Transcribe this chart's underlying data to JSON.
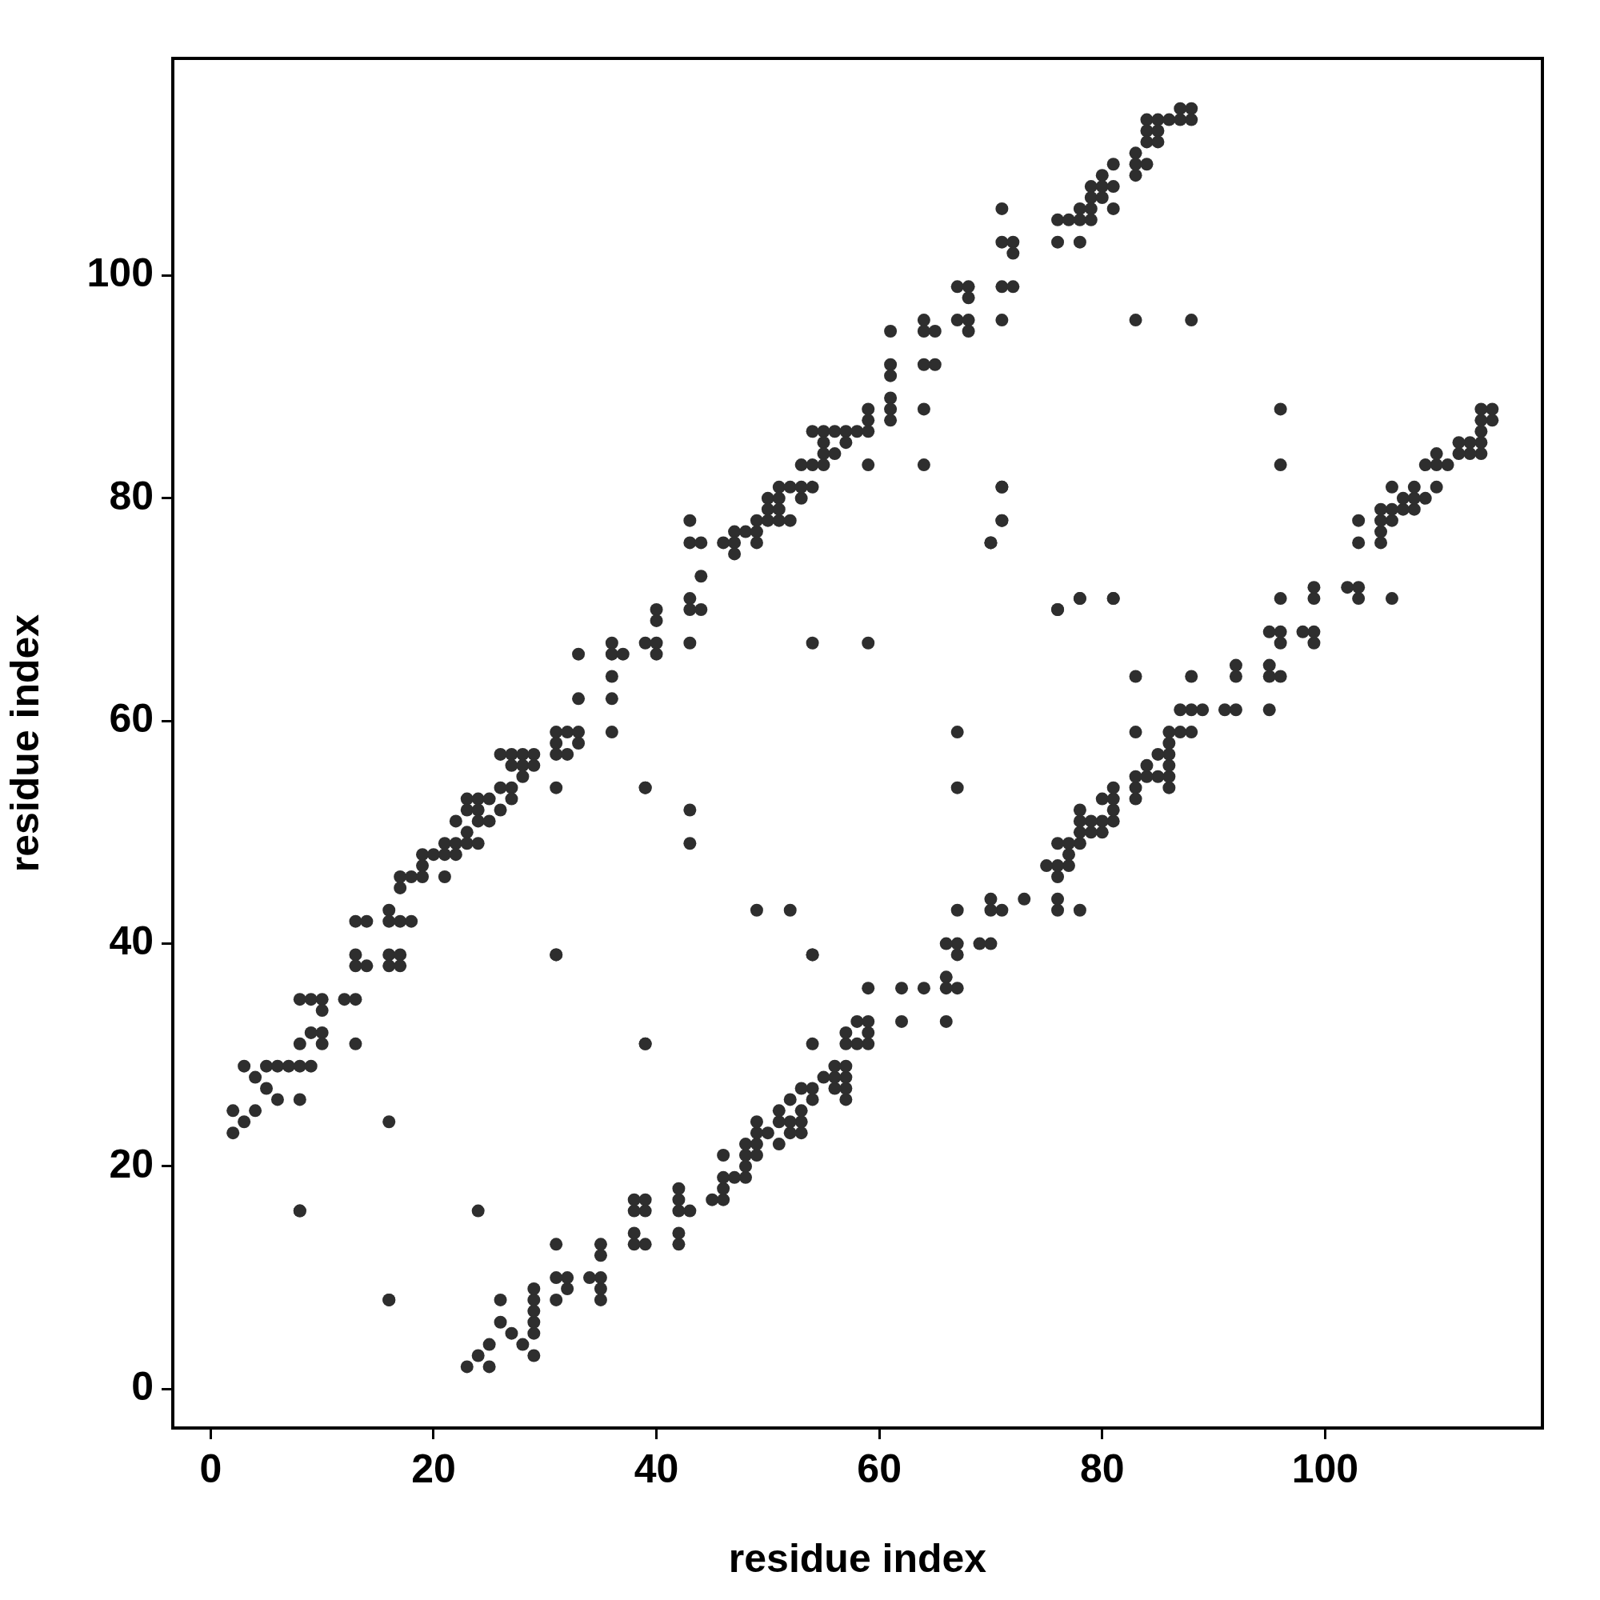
{
  "chart_data": {
    "type": "scatter",
    "xlabel": "residue index",
    "ylabel": "residue index",
    "xlim": [
      -3.4,
      119.5
    ],
    "ylim": [
      -3.5,
      119.5
    ],
    "xticks": [
      0,
      20,
      40,
      60,
      80,
      100
    ],
    "yticks": [
      0,
      20,
      40,
      60,
      80,
      100
    ],
    "grid": false,
    "legend": false,
    "marker": "circle",
    "series": [
      {
        "color": "#2e2e2e",
        "x": [
          2,
          2,
          3,
          3,
          4,
          4,
          5,
          5,
          6,
          6,
          7,
          8,
          8,
          8,
          8,
          8,
          9,
          9,
          9,
          10,
          10,
          10,
          10,
          12,
          13,
          13,
          13,
          13,
          13,
          14,
          14,
          16,
          16,
          16,
          16,
          16,
          16,
          17,
          17,
          17,
          17,
          17,
          18,
          18,
          19,
          19,
          19,
          20,
          21,
          21,
          21,
          22,
          22,
          22,
          23,
          23,
          23,
          23,
          24,
          24,
          24,
          24,
          25,
          25,
          26,
          26,
          26,
          27,
          27,
          27,
          27,
          28,
          28,
          28,
          29,
          29,
          31,
          31,
          31,
          31,
          31,
          32,
          32,
          33,
          33,
          33,
          33,
          36,
          36,
          36,
          36,
          36,
          37,
          39,
          39,
          39,
          40,
          40,
          40,
          40,
          43,
          43,
          43,
          43,
          43,
          43,
          43,
          44,
          44,
          44,
          46,
          47,
          47,
          47,
          48,
          49,
          49,
          49,
          50,
          50,
          50,
          51,
          51,
          51,
          51,
          52,
          52,
          53,
          53,
          53,
          54,
          54,
          54,
          54,
          54,
          55,
          55,
          55,
          55,
          56,
          56,
          57,
          57,
          58,
          59,
          59,
          59,
          59,
          59,
          61,
          61,
          61,
          61,
          61,
          61,
          64,
          64,
          64,
          64,
          64,
          65,
          65,
          67,
          67,
          68,
          68,
          68,
          68,
          70,
          71,
          71,
          71,
          71,
          71,
          71,
          72,
          72,
          72,
          76,
          76,
          76,
          77,
          78,
          78,
          78,
          78,
          79,
          79,
          79,
          79,
          80,
          80,
          80,
          81,
          81,
          81,
          81,
          83,
          83,
          83,
          83,
          84,
          84,
          84,
          84,
          85,
          85,
          85,
          86,
          87,
          87,
          88,
          88,
          88
        ],
        "values": [
          23,
          25,
          24,
          29,
          25,
          28,
          27,
          29,
          26,
          29,
          29,
          31,
          29,
          26,
          16,
          35,
          35,
          32,
          29,
          35,
          34,
          32,
          31,
          35,
          35,
          39,
          38,
          42,
          31,
          42,
          38,
          43,
          42,
          39,
          38,
          24,
          8,
          42,
          45,
          46,
          39,
          38,
          46,
          42,
          48,
          47,
          46,
          48,
          48,
          49,
          46,
          51,
          49,
          48,
          53,
          52,
          50,
          49,
          53,
          52,
          51,
          49,
          53,
          51,
          54,
          52,
          57,
          57,
          56,
          54,
          53,
          57,
          56,
          55,
          57,
          56,
          59,
          58,
          57,
          54,
          39,
          59,
          57,
          62,
          59,
          58,
          66,
          67,
          66,
          64,
          62,
          59,
          66,
          67,
          54,
          31,
          70,
          69,
          67,
          66,
          78,
          76,
          71,
          70,
          67,
          52,
          49,
          76,
          73,
          70,
          76,
          77,
          76,
          75,
          77,
          78,
          77,
          76,
          80,
          79,
          78,
          81,
          80,
          79,
          78,
          81,
          78,
          80,
          81,
          83,
          86,
          83,
          81,
          67,
          39,
          86,
          85,
          84,
          83,
          86,
          84,
          86,
          85,
          86,
          88,
          87,
          86,
          83,
          67,
          95,
          92,
          91,
          89,
          88,
          87,
          96,
          95,
          92,
          88,
          83,
          95,
          92,
          99,
          96,
          99,
          98,
          96,
          95,
          76,
          106,
          103,
          99,
          96,
          81,
          78,
          103,
          102,
          99,
          105,
          103,
          70,
          105,
          106,
          105,
          103,
          71,
          108,
          107,
          106,
          105,
          109,
          108,
          107,
          110,
          108,
          106,
          71,
          111,
          110,
          109,
          96,
          114,
          113,
          112,
          110,
          114,
          113,
          112,
          114,
          115,
          114,
          115,
          114,
          96
        ]
      },
      {
        "color": "#2e2e2e",
        "x": [
          23,
          25,
          24,
          29,
          25,
          28,
          27,
          29,
          26,
          29,
          29,
          31,
          29,
          26,
          16,
          35,
          35,
          32,
          29,
          35,
          34,
          32,
          31,
          35,
          35,
          39,
          38,
          42,
          31,
          42,
          38,
          43,
          42,
          39,
          38,
          24,
          8,
          42,
          45,
          46,
          39,
          38,
          46,
          42,
          48,
          47,
          46,
          48,
          48,
          49,
          46,
          51,
          49,
          48,
          53,
          52,
          50,
          49,
          53,
          52,
          51,
          49,
          53,
          51,
          54,
          52,
          57,
          57,
          56,
          54,
          53,
          57,
          56,
          55,
          57,
          56,
          59,
          58,
          57,
          54,
          39,
          59,
          57,
          62,
          59,
          58,
          66,
          67,
          66,
          64,
          62,
          59,
          66,
          67,
          54,
          31,
          70,
          69,
          67,
          66,
          78,
          76,
          71,
          70,
          67,
          52,
          49,
          76,
          73,
          70,
          76,
          77,
          76,
          75,
          77,
          78,
          77,
          76,
          80,
          79,
          78,
          81,
          80,
          79,
          78,
          81,
          78,
          80,
          81,
          83,
          86,
          83,
          81,
          67,
          39,
          86,
          85,
          84,
          83,
          86,
          84,
          86,
          85,
          86,
          88,
          87,
          86,
          83,
          67,
          95,
          92,
          91,
          89,
          88,
          87,
          96,
          95,
          92,
          88,
          83,
          95,
          92,
          99,
          96,
          99,
          98,
          96,
          95,
          76,
          106,
          103,
          99,
          96,
          81,
          78,
          103,
          102,
          99,
          105,
          103,
          70,
          105,
          106,
          105,
          103,
          71,
          108,
          107,
          106,
          105,
          109,
          108,
          107,
          110,
          108,
          106,
          71,
          111,
          110,
          109,
          96,
          114,
          113,
          112,
          110,
          114,
          113,
          112,
          114,
          115,
          114,
          115,
          114,
          96
        ],
        "values": [
          2,
          2,
          3,
          3,
          4,
          4,
          5,
          5,
          6,
          6,
          7,
          8,
          8,
          8,
          8,
          8,
          9,
          9,
          9,
          10,
          10,
          10,
          10,
          12,
          13,
          13,
          13,
          13,
          13,
          14,
          14,
          16,
          16,
          16,
          16,
          16,
          16,
          17,
          17,
          17,
          17,
          17,
          18,
          18,
          19,
          19,
          19,
          20,
          21,
          21,
          21,
          22,
          22,
          22,
          23,
          23,
          23,
          23,
          24,
          24,
          24,
          24,
          25,
          25,
          26,
          26,
          26,
          27,
          27,
          27,
          27,
          28,
          28,
          28,
          29,
          29,
          31,
          31,
          31,
          31,
          31,
          32,
          32,
          33,
          33,
          33,
          33,
          36,
          36,
          36,
          36,
          36,
          37,
          39,
          39,
          39,
          40,
          40,
          40,
          40,
          43,
          43,
          43,
          43,
          43,
          43,
          43,
          44,
          44,
          44,
          46,
          47,
          47,
          47,
          48,
          49,
          49,
          49,
          50,
          50,
          50,
          51,
          51,
          51,
          51,
          52,
          52,
          53,
          53,
          53,
          54,
          54,
          54,
          54,
          54,
          55,
          55,
          55,
          55,
          56,
          56,
          57,
          57,
          58,
          59,
          59,
          59,
          59,
          59,
          61,
          61,
          61,
          61,
          61,
          61,
          64,
          64,
          64,
          64,
          64,
          65,
          65,
          67,
          67,
          68,
          68,
          68,
          68,
          70,
          71,
          71,
          71,
          71,
          71,
          71,
          72,
          72,
          72,
          76,
          76,
          76,
          77,
          78,
          78,
          78,
          78,
          79,
          79,
          79,
          79,
          80,
          80,
          80,
          81,
          81,
          81,
          81,
          83,
          83,
          83,
          83,
          84,
          84,
          84,
          84,
          85,
          85,
          85,
          86,
          87,
          87,
          88,
          88,
          88
        ]
      }
    ]
  }
}
